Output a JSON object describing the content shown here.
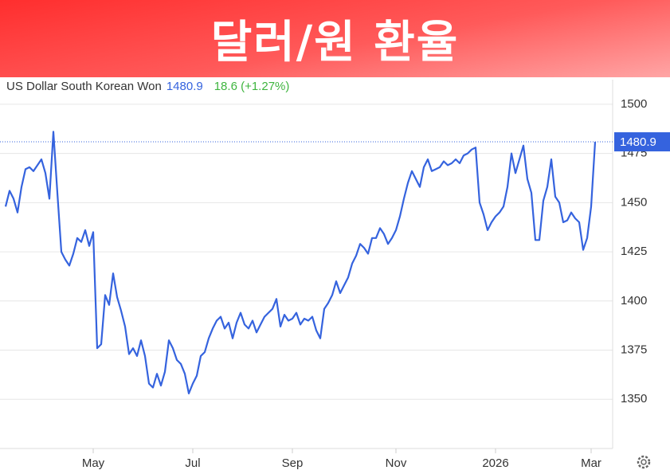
{
  "chart_data": {
    "type": "line",
    "title": "달러/원 환율",
    "change_label": "18.6 (+1.27%)",
    "categories": [
      null,
      null,
      null,
      null,
      null,
      null,
      null,
      null,
      null,
      null,
      null,
      null,
      null,
      null,
      null,
      null,
      null,
      null,
      null,
      null,
      null,
      null,
      "May",
      null,
      null,
      null,
      null,
      null,
      null,
      null,
      null,
      null,
      null,
      null,
      null,
      null,
      null,
      null,
      null,
      null,
      null,
      null,
      null,
      null,
      null,
      null,
      null,
      "Jul",
      null,
      null,
      null,
      null,
      null,
      null,
      null,
      null,
      null,
      null,
      null,
      null,
      null,
      null,
      null,
      null,
      null,
      null,
      null,
      null,
      null,
      null,
      null,
      null,
      "Sep",
      null,
      null,
      null,
      null,
      null,
      null,
      null,
      null,
      null,
      null,
      null,
      null,
      null,
      null,
      null,
      null,
      null,
      null,
      null,
      null,
      null,
      null,
      null,
      null,
      null,
      "Nov",
      null,
      null,
      null,
      null,
      null,
      null,
      null,
      null,
      null,
      null,
      null,
      null,
      null,
      null,
      null,
      null,
      null,
      null,
      null,
      null,
      null,
      null,
      null,
      null,
      "2026",
      null,
      null,
      null,
      null,
      null,
      null,
      null,
      null,
      null,
      null,
      null,
      null,
      null,
      null,
      null,
      null,
      null,
      null,
      null,
      null,
      null,
      null,
      null,
      "Mar",
      null
    ],
    "series": [
      {
        "name": "US Dollar South Korean Won",
        "color": "#3563de",
        "values": [
          1448,
          1456,
          1452,
          1445,
          1458,
          1467,
          1468,
          1466,
          1469,
          1472,
          1465,
          1452,
          1486,
          1455,
          1425,
          1421,
          1418,
          1424,
          1432,
          1430,
          1436,
          1428,
          1435,
          1376,
          1378,
          1403,
          1398,
          1414,
          1402,
          1395,
          1387,
          1373,
          1376,
          1372,
          1380,
          1372,
          1358,
          1356,
          1363,
          1357,
          1364,
          1380,
          1376,
          1370,
          1368,
          1363,
          1353,
          1358,
          1362,
          1372,
          1374,
          1381,
          1386,
          1390,
          1392,
          1386,
          1389,
          1381,
          1389,
          1394,
          1388,
          1386,
          1390,
          1384,
          1388,
          1392,
          1394,
          1396,
          1401,
          1387,
          1393,
          1390,
          1391,
          1394,
          1388,
          1391,
          1390,
          1392,
          1385,
          1381,
          1396,
          1399,
          1403,
          1410,
          1404,
          1408,
          1412,
          1419,
          1423,
          1429,
          1427,
          1424,
          1432,
          1432,
          1437,
          1434,
          1429,
          1432,
          1436,
          1443,
          1452,
          1460,
          1466,
          1462,
          1458,
          1468,
          1472,
          1466,
          1467,
          1468,
          1471,
          1469,
          1470,
          1472,
          1470,
          1474,
          1475,
          1477,
          1478,
          1450,
          1444,
          1436,
          1440,
          1443,
          1445,
          1448,
          1458,
          1475,
          1465,
          1472,
          1479,
          1462,
          1455,
          1431,
          1431,
          1451,
          1458,
          1472,
          1453,
          1450,
          1440,
          1441,
          1445,
          1442,
          1440,
          1426,
          1432,
          1448,
          1480.9
        ]
      }
    ],
    "ylim": [
      1325,
      1512.5
    ],
    "yticks": [
      1350,
      1375,
      1400,
      1425,
      1450,
      1475,
      1500
    ],
    "grid": true,
    "change_color": "#3fb53f"
  }
}
